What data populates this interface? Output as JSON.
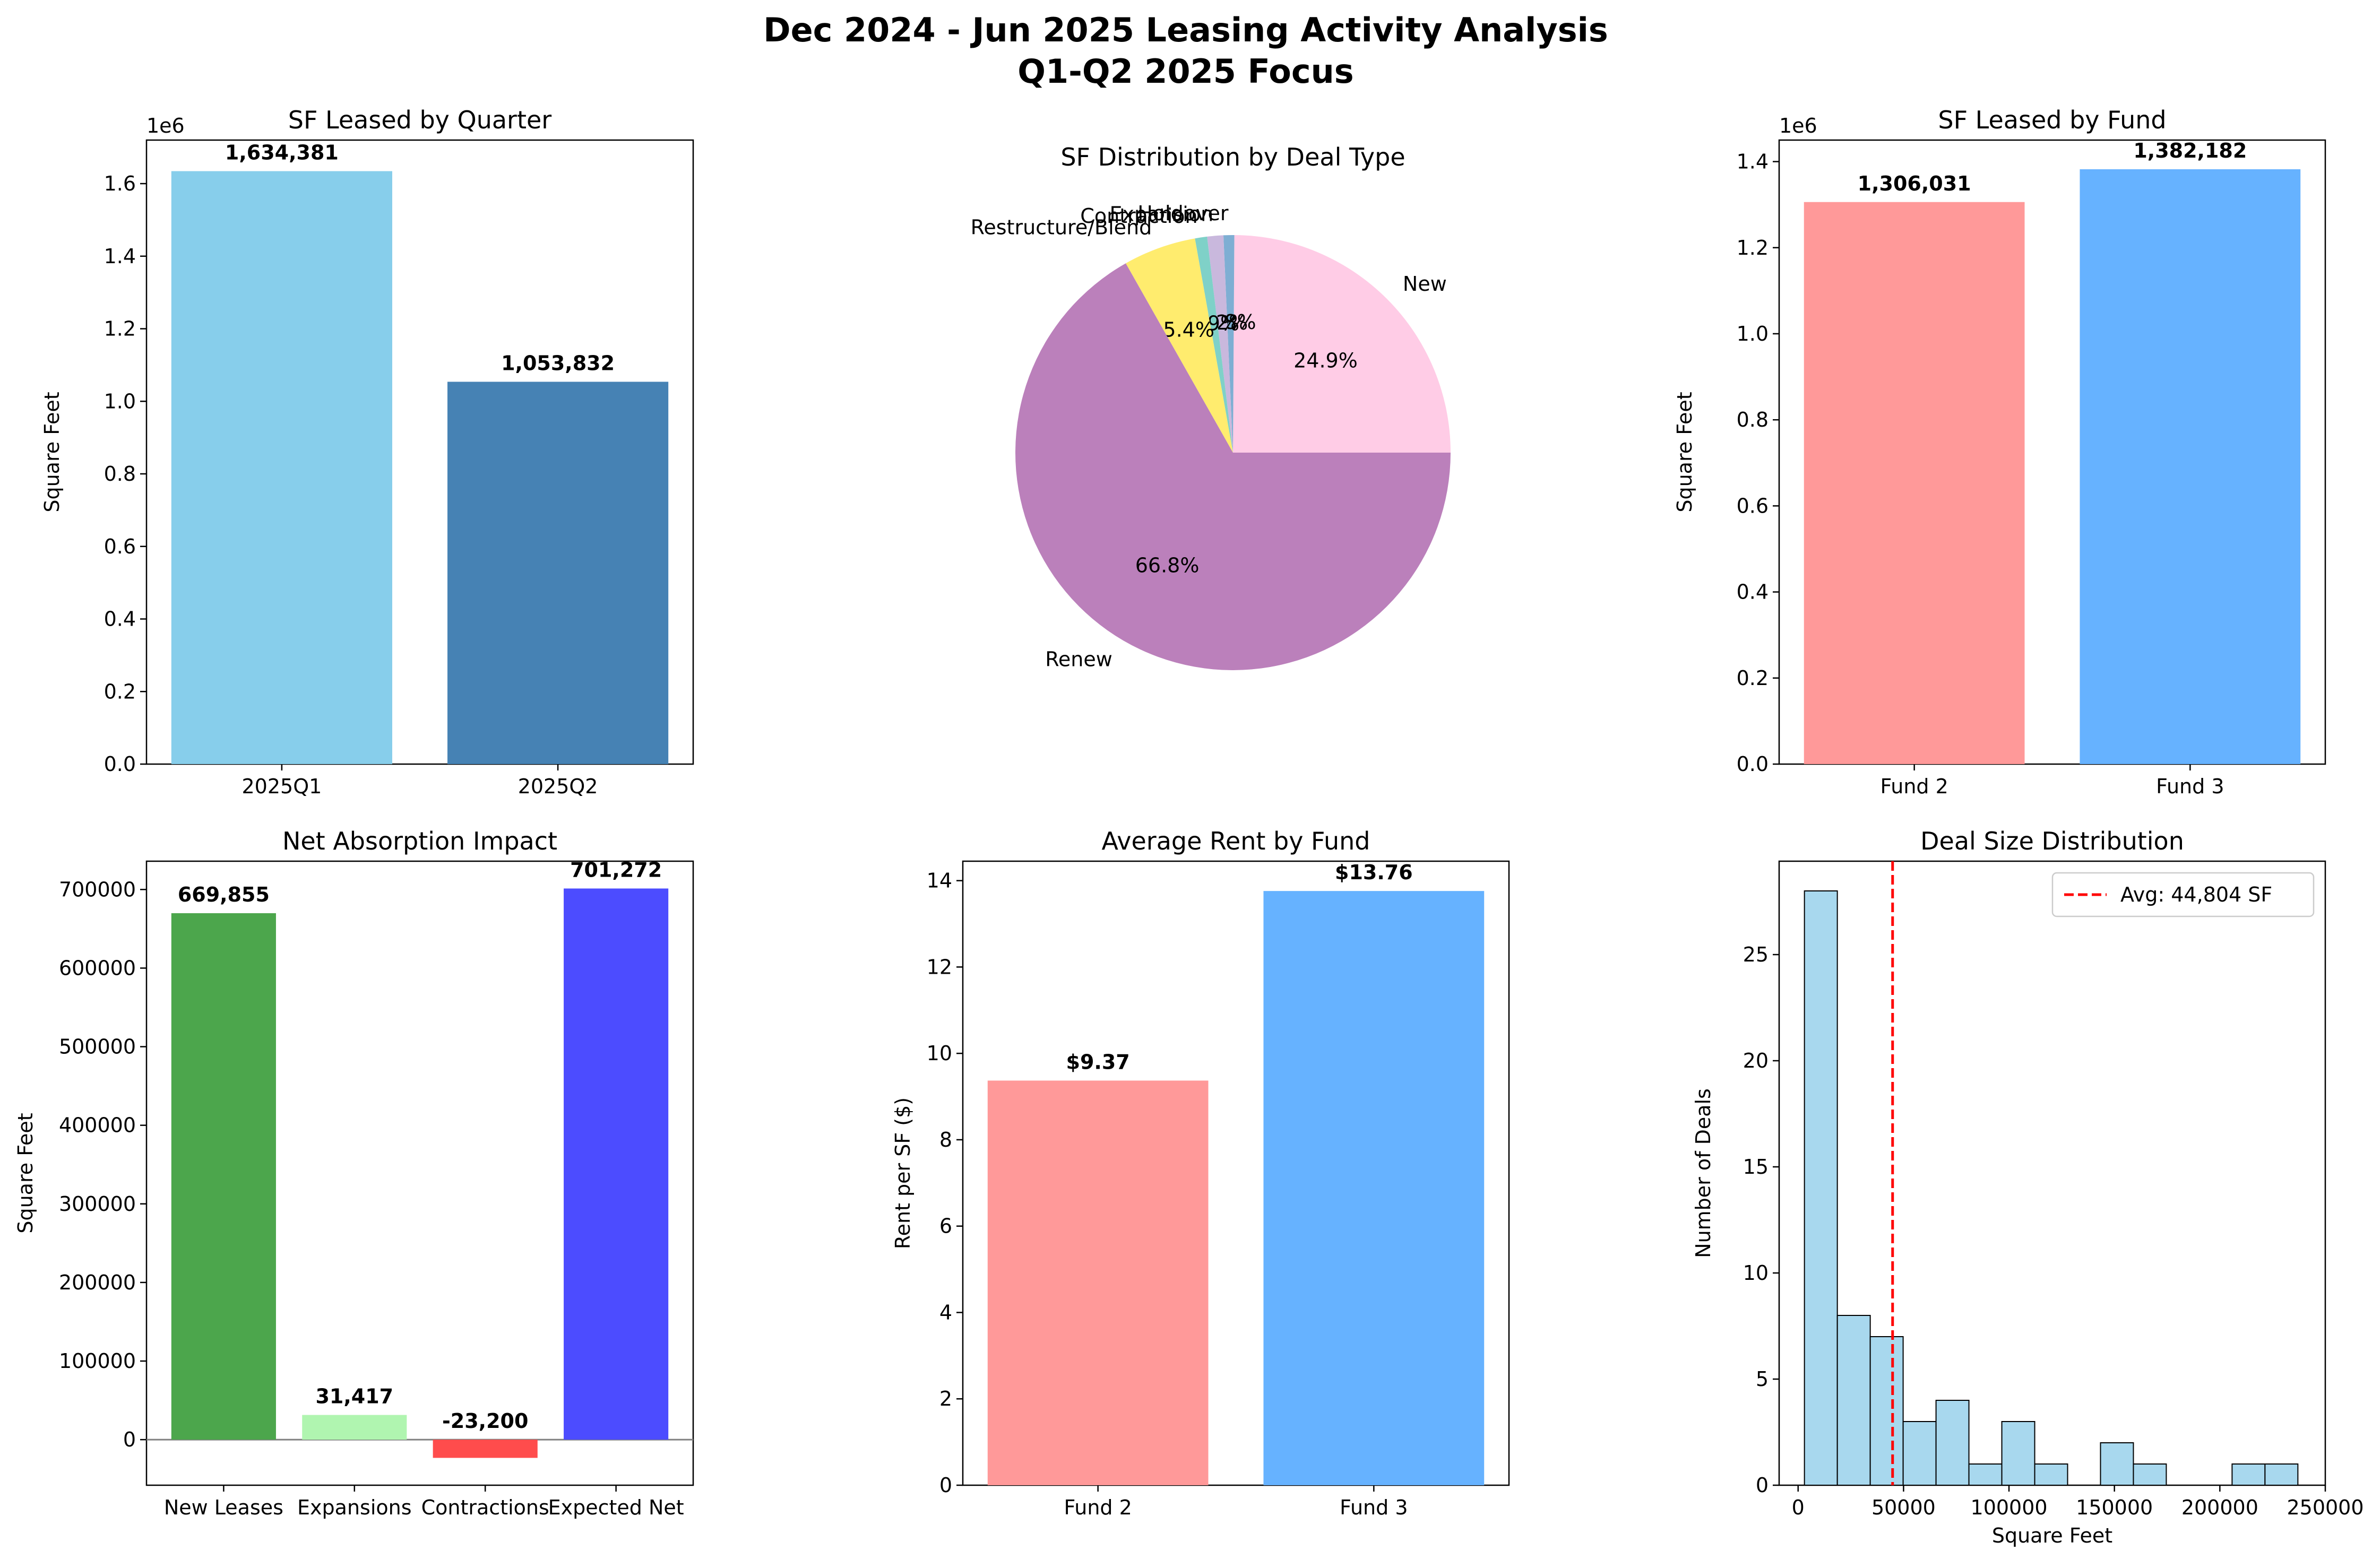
{
  "figure": {
    "title_line1": "Dec 2024 - Jun 2025 Leasing Activity Analysis",
    "title_line2": "Q1-Q2 2025 Focus"
  },
  "chart_data": [
    {
      "id": "quarter",
      "type": "bar",
      "title": "SF Leased by Quarter",
      "xlabel": "",
      "ylabel": "Square Feet",
      "offset_label": "1e6",
      "categories": [
        "2025Q1",
        "2025Q2"
      ],
      "values": [
        1634381,
        1053832
      ],
      "value_labels": [
        "1,634,381",
        "1,053,832"
      ],
      "colors": [
        "#87ceeb",
        "#4682b4"
      ],
      "ylim": [
        0,
        1.72
      ],
      "yticks": [
        0.0,
        0.2,
        0.4,
        0.6,
        0.8,
        1.0,
        1.2,
        1.4,
        1.6
      ],
      "ytick_labels": [
        "0.0",
        "0.2",
        "0.4",
        "0.6",
        "0.8",
        "1.0",
        "1.2",
        "1.4",
        "1.6"
      ],
      "grid": false
    },
    {
      "id": "dealtype",
      "type": "pie",
      "title": "SF Distribution by Deal Type",
      "slices": [
        {
          "label": "New",
          "pct": 24.9,
          "pct_label": "24.9%",
          "color": "#ffcce6"
        },
        {
          "label": "Holdover",
          "pct": 0.8,
          "pct_label": "0.8%",
          "color": "#7eaed3"
        },
        {
          "label": "Expansion",
          "pct": 1.2,
          "pct_label": "1.2%",
          "color": "#c9b8dd"
        },
        {
          "label": "Contraction",
          "pct": 0.9,
          "pct_label": "0.9%",
          "color": "#7fd1c8"
        },
        {
          "label": "Restructure/Blend",
          "pct": 5.4,
          "pct_label": "5.4%",
          "color": "#ffec6e"
        },
        {
          "label": "Renew",
          "pct": 66.8,
          "pct_label": "66.8%",
          "color": "#bb80bb"
        }
      ]
    },
    {
      "id": "fund",
      "type": "bar",
      "title": "SF Leased by Fund",
      "xlabel": "",
      "ylabel": "Square Feet",
      "offset_label": "1e6",
      "categories": [
        "Fund 2",
        "Fund 3"
      ],
      "values": [
        1306031,
        1382182
      ],
      "value_labels": [
        "1,306,031",
        "1,382,182"
      ],
      "colors": [
        "#ff9999",
        "#66b2ff"
      ],
      "ylim": [
        0,
        1.45
      ],
      "yticks": [
        0.0,
        0.2,
        0.4,
        0.6,
        0.8,
        1.0,
        1.2,
        1.4
      ],
      "ytick_labels": [
        "0.0",
        "0.2",
        "0.4",
        "0.6",
        "0.8",
        "1.0",
        "1.2",
        "1.4"
      ],
      "grid": false
    },
    {
      "id": "absorption",
      "type": "bar",
      "title": "Net Absorption Impact",
      "xlabel": "",
      "ylabel": "Square Feet",
      "categories": [
        "New Leases",
        "Expansions",
        "Contractions",
        "Expected Net"
      ],
      "values": [
        669855,
        31417,
        -23200,
        701272
      ],
      "value_labels": [
        "669,855",
        "31,417",
        "-23,200",
        "701,272"
      ],
      "colors": [
        "#4ca64c",
        "#b0f5b0",
        "#ff4c4c",
        "#4c4cff"
      ],
      "ylim": [
        -58000,
        736000
      ],
      "yticks": [
        0,
        100000,
        200000,
        300000,
        400000,
        500000,
        600000,
        700000
      ],
      "ytick_labels": [
        "0",
        "100000",
        "200000",
        "300000",
        "400000",
        "500000",
        "600000",
        "700000"
      ],
      "zero_line": true,
      "grid": false
    },
    {
      "id": "rent",
      "type": "bar",
      "title": "Average Rent by Fund",
      "xlabel": "",
      "ylabel": "Rent per SF ($)",
      "categories": [
        "Fund 2",
        "Fund 3"
      ],
      "values": [
        9.37,
        13.76
      ],
      "value_labels": [
        "$9.37",
        "$13.76"
      ],
      "colors": [
        "#ff9999",
        "#66b2ff"
      ],
      "ylim": [
        0,
        14.45
      ],
      "yticks": [
        0,
        2,
        4,
        6,
        8,
        10,
        12,
        14
      ],
      "ytick_labels": [
        "0",
        "2",
        "4",
        "6",
        "8",
        "10",
        "12",
        "14"
      ],
      "grid": false
    },
    {
      "id": "dealsize",
      "type": "histogram",
      "title": "Deal Size Distribution",
      "xlabel": "Square Feet",
      "ylabel": "Number of Deals",
      "bin_start": 3000,
      "bin_width": 15600,
      "counts": [
        28,
        8,
        7,
        3,
        4,
        1,
        3,
        1,
        0,
        2,
        1,
        0,
        0,
        1,
        1
      ],
      "bar_color": "#a8d8ee",
      "edge_color": "#000000",
      "xlim": [
        -9000,
        250000
      ],
      "xticks": [
        0,
        50000,
        100000,
        150000,
        200000,
        250000
      ],
      "xtick_labels": [
        "0",
        "50000",
        "100000",
        "150000",
        "200000",
        "250000"
      ],
      "ylim": [
        0,
        29.4
      ],
      "yticks": [
        0,
        5,
        10,
        15,
        20,
        25
      ],
      "ytick_labels": [
        "0",
        "5",
        "10",
        "15",
        "20",
        "25"
      ],
      "avg_value": 44804,
      "avg_color": "#ff0000",
      "legend_label": "Avg: 44,804 SF",
      "legend_position": "upper right",
      "grid": false
    }
  ]
}
